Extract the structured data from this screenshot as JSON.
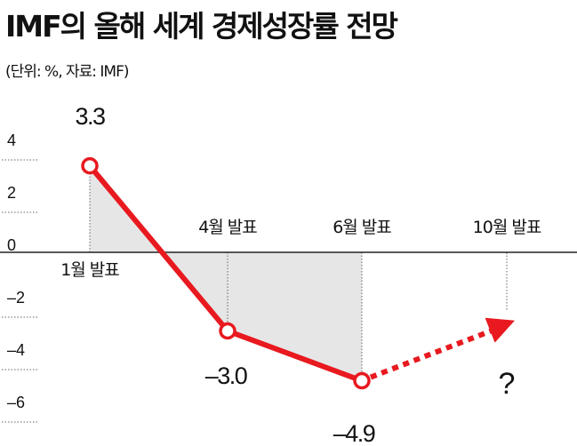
{
  "header": {
    "title": "IMF의 올해 세계 경제성장률 전망",
    "subtitle": "(단위: %, 자료: IMF)"
  },
  "chart_data": {
    "type": "line",
    "title": "IMF의 올해 세계 경제성장률 전망",
    "subtitle": "(단위: %, 자료: IMF)",
    "ylim": [
      -6.8,
      5
    ],
    "yticks": [
      {
        "value": 4,
        "label": "4"
      },
      {
        "value": 2,
        "label": "2"
      },
      {
        "value": 0,
        "label": "0"
      },
      {
        "value": -2,
        "label": "–2"
      },
      {
        "value": -4,
        "label": "–4"
      },
      {
        "value": -6,
        "label": "–6"
      }
    ],
    "grid": true,
    "categories": [
      "1월 발표",
      "4월 발표",
      "6월 발표",
      "10월 발표"
    ],
    "series": [
      {
        "values": [
          3.3,
          -3.0,
          -4.9,
          null
        ],
        "data_labels": [
          "3.3",
          "–3.0",
          "–4.9",
          "?"
        ],
        "color": "#e8191f"
      }
    ],
    "projection": {
      "from_category": "6월 발표",
      "to_category": "10월 발표",
      "style": "dotted-arrow",
      "label": "?"
    },
    "fill_color": "#e6e6e6",
    "axis_color": "#222222",
    "grid_color": "#666666"
  }
}
